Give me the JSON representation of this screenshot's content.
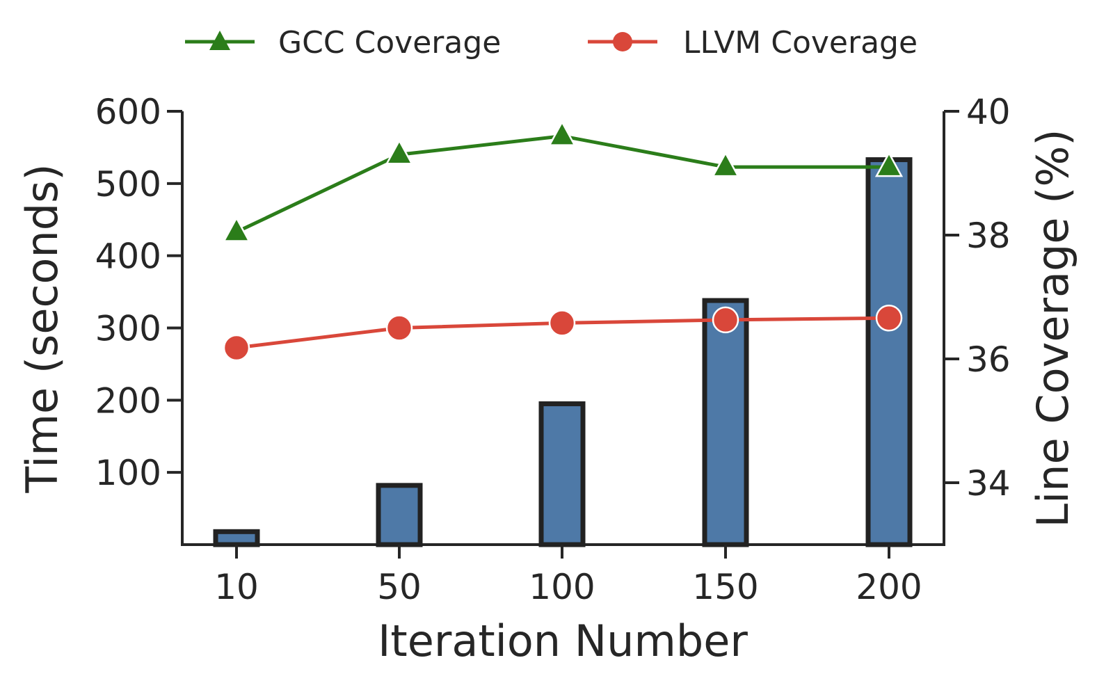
{
  "chart_data": {
    "type": "bar+line",
    "categories": [
      "10",
      "50",
      "100",
      "150",
      "200"
    ],
    "xlabel": "Iteration Number",
    "ylabel_left": "Time (seconds)",
    "ylabel_right": "Line Coverage (%)",
    "ylim_left": [
      0,
      600
    ],
    "ylim_right": [
      33,
      40
    ],
    "yticks_left": [
      "100",
      "200",
      "300",
      "400",
      "500",
      "600"
    ],
    "yticks_right": [
      "34",
      "36",
      "38",
      "40"
    ],
    "bars": {
      "name": "Time",
      "axis": "left",
      "values": [
        18,
        82,
        195,
        338,
        533
      ],
      "color": "#4e79a7",
      "edgecolor": "#222222"
    },
    "series": [
      {
        "name": "GCC Coverage",
        "axis": "right",
        "marker": "triangle",
        "color": "#2b7d1a",
        "values": [
          38.05,
          39.3,
          39.6,
          39.1,
          39.1
        ]
      },
      {
        "name": "LLVM Coverage",
        "axis": "right",
        "marker": "circle",
        "color": "#d9473a",
        "values": [
          36.18,
          36.5,
          36.58,
          36.63,
          36.66
        ]
      }
    ],
    "legend": {
      "placement": "top-center",
      "entries": [
        "GCC Coverage",
        "LLVM Coverage"
      ]
    },
    "grid": false
  }
}
